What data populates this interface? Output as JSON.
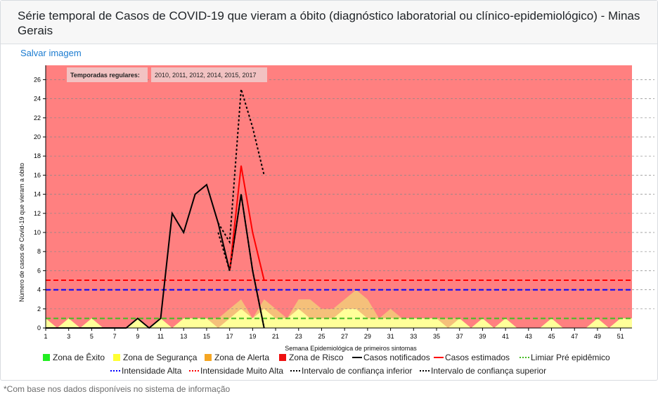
{
  "card": {
    "title": "Série temporal de Casos de COVID-19 que vieram a óbito (diagnóstico laboratorial ou clínico-epidemiológico) - Minas Gerais",
    "save_label": "Salvar imagem",
    "footnote": "*Com base nos dados disponíveis no sistema de informação"
  },
  "colors": {
    "risk_zone": "#ff8080",
    "alert_zone": "#f5c07a",
    "security_zone": "#ffff99",
    "legend_exito": "#22ee22",
    "legend_seguranca": "#ffff33",
    "legend_alerta": "#f5a623",
    "legend_risco": "#ee1111",
    "notified": "#000000",
    "estimated": "#ff0000",
    "threshold": "#44bb22",
    "high_intensity": "#0000ff",
    "very_high_intensity": "#ff0000",
    "confidence": "#000000"
  },
  "chart_data": {
    "type": "area",
    "title": "",
    "xlabel": "Semana Epidemiológica de primeiros sintomas",
    "ylabel": "Número de casos de Covid-19 que vieram a óbito",
    "xlim": [
      1,
      52
    ],
    "ylim": [
      0,
      27.5
    ],
    "x_ticks": [
      1,
      3,
      5,
      7,
      9,
      11,
      13,
      15,
      17,
      19,
      21,
      23,
      25,
      27,
      29,
      31,
      33,
      35,
      37,
      39,
      41,
      43,
      45,
      47,
      49,
      51
    ],
    "y_ticks": [
      0,
      2,
      4,
      6,
      8,
      10,
      12,
      14,
      16,
      18,
      20,
      22,
      24,
      26
    ],
    "grid": "horizontal dashed",
    "seasons_label": "Temporadas regulares:",
    "seasons_value": "2010, 2011, 2012, 2014, 2015, 2017",
    "zones": {
      "x": [
        1,
        2,
        3,
        4,
        5,
        6,
        7,
        8,
        9,
        10,
        11,
        12,
        13,
        14,
        15,
        16,
        17,
        18,
        19,
        20,
        21,
        22,
        23,
        24,
        25,
        26,
        27,
        28,
        29,
        30,
        31,
        32,
        33,
        34,
        35,
        36,
        37,
        38,
        39,
        40,
        41,
        42,
        43,
        44,
        45,
        46,
        47,
        48,
        49,
        50,
        51,
        52
      ],
      "seguranca_upper": [
        1,
        0,
        1,
        0,
        1,
        0,
        0,
        0,
        1,
        0,
        1,
        0,
        1,
        1,
        1,
        0,
        1,
        2,
        1,
        2,
        1,
        1,
        2,
        1,
        1,
        1,
        2,
        2,
        1,
        1,
        1,
        1,
        1,
        1,
        1,
        0,
        1,
        0,
        1,
        0,
        1,
        0,
        0,
        0,
        1,
        0,
        0,
        0,
        1,
        0,
        1,
        1
      ],
      "alerta_upper": [
        1,
        0,
        1,
        0,
        1,
        0,
        0,
        0,
        1,
        0,
        1,
        0,
        1,
        1,
        1,
        1,
        2,
        3,
        1,
        3,
        2,
        1,
        3,
        3,
        2,
        2,
        3,
        4,
        3,
        1,
        2,
        1,
        1,
        1,
        1,
        1,
        1,
        0,
        1,
        0,
        1,
        0,
        0,
        0,
        1,
        0,
        0,
        0,
        1,
        0,
        1,
        1
      ],
      "risco_upper": 27.5
    },
    "series": [
      {
        "name": "Casos notificados",
        "x": [
          1,
          2,
          3,
          4,
          5,
          6,
          7,
          8,
          9,
          10,
          11,
          12,
          13,
          14,
          15,
          16,
          17,
          18,
          19,
          20
        ],
        "values": [
          0,
          0,
          0,
          0,
          0,
          0,
          0,
          0,
          1,
          0,
          1,
          12,
          10,
          14,
          15,
          11,
          6,
          14,
          6,
          0
        ]
      },
      {
        "name": "Casos estimados",
        "x": [
          17,
          18,
          19,
          20
        ],
        "values": [
          6,
          17,
          10,
          5
        ]
      },
      {
        "name": "Limiar Pré epidêmico",
        "constant": 1
      },
      {
        "name": "Intensidade Alta",
        "constant": 4
      },
      {
        "name": "Intensidade Muito Alta",
        "constant": 5
      },
      {
        "name": "Intervalo de confiança inferior",
        "x": [
          16,
          17,
          18,
          19,
          20
        ],
        "values": [
          10,
          6,
          14,
          6,
          0
        ]
      },
      {
        "name": "Intervalo de confiança superior",
        "x": [
          16,
          17,
          18,
          19,
          20
        ],
        "values": [
          11,
          9,
          25,
          21,
          16
        ]
      }
    ],
    "legend": [
      {
        "label": "Zona de Êxito",
        "kind": "box",
        "color": "#22ee22"
      },
      {
        "label": "Zona de Segurança",
        "kind": "box",
        "color": "#ffff33"
      },
      {
        "label": "Zona de Alerta",
        "kind": "box",
        "color": "#f5a623"
      },
      {
        "label": "Zona de Risco",
        "kind": "box",
        "color": "#ee1111"
      },
      {
        "label": "Casos notificados",
        "kind": "line",
        "color": "#000000"
      },
      {
        "label": "Casos estimados",
        "kind": "line",
        "color": "#ff0000"
      },
      {
        "label": "Limiar Pré epidêmico",
        "kind": "dash",
        "color": "#44bb22"
      },
      {
        "label": "Intensidade Alta",
        "kind": "dash",
        "color": "#0000ff"
      },
      {
        "label": "Intensidade Muito Alta",
        "kind": "dash",
        "color": "#ff0000"
      },
      {
        "label": "Intervalo de confiança inferior",
        "kind": "dash",
        "color": "#000000"
      },
      {
        "label": "Intervalo de confiança superior",
        "kind": "dash",
        "color": "#000000"
      }
    ]
  }
}
